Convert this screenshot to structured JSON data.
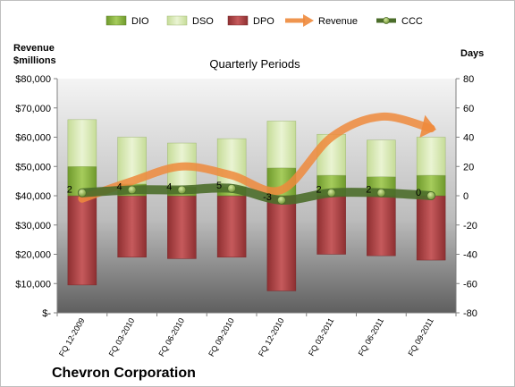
{
  "chart_data": {
    "type": "bar",
    "company": "Chevron Corporation",
    "subtitle": "Quarterly Periods",
    "categories": [
      "FQ 12-2009",
      "FQ 03-2010",
      "FQ 06-2010",
      "FQ 09-2010",
      "FQ 12-2010",
      "FQ 03-2011",
      "FQ 06-2011",
      "FQ 09-2011"
    ],
    "legend": [
      {
        "name": "DIO",
        "color": "#8db443"
      },
      {
        "name": "DSO",
        "color": "#d7e8b1"
      },
      {
        "name": "DPO",
        "color": "#b0484a"
      },
      {
        "name": "Revenue",
        "color": "#ee8a3c"
      },
      {
        "name": "CCC",
        "color": "#4b6d2a"
      }
    ],
    "left_axis": {
      "title_line1": "Revenue",
      "title_line2": "$millions",
      "ylim": [
        0,
        80000
      ],
      "ticks": [
        0,
        10000,
        20000,
        30000,
        40000,
        50000,
        60000,
        70000,
        80000
      ],
      "tick_labels": [
        "$-",
        "$10,000",
        "$20,000",
        "$30,000",
        "$40,000",
        "$50,000",
        "$60,000",
        "$70,000",
        "$80,000"
      ]
    },
    "right_axis": {
      "title": "Days",
      "ylim": [
        -80,
        80
      ],
      "ticks": [
        -80,
        -60,
        -40,
        -20,
        0,
        20,
        40,
        60,
        80
      ],
      "tick_labels": [
        "-80",
        "-60",
        "-40",
        "-20",
        "0",
        "20",
        "40",
        "60",
        "80"
      ]
    },
    "series": [
      {
        "name": "DIO",
        "axis": "days",
        "values": [
          20,
          8,
          6,
          6,
          19,
          14,
          13,
          14
        ]
      },
      {
        "name": "DSO",
        "axis": "days",
        "values": [
          32,
          32,
          30,
          33,
          32,
          28,
          25,
          26
        ]
      },
      {
        "name": "DPO",
        "axis": "days",
        "values": [
          -61,
          -42,
          -43,
          -42,
          -65,
          -40,
          -41,
          -44
        ]
      },
      {
        "name": "Revenue",
        "axis": "revenue",
        "values": [
          39000,
          45000,
          50000,
          47000,
          42000,
          60000,
          67000,
          63000
        ]
      },
      {
        "name": "CCC",
        "axis": "days",
        "values": [
          2,
          4,
          4,
          5,
          -3,
          2,
          2,
          0
        ]
      }
    ],
    "ccc_labels": [
      "2",
      "4",
      "4",
      "5",
      "-3",
      "2",
      "2",
      "0"
    ]
  }
}
